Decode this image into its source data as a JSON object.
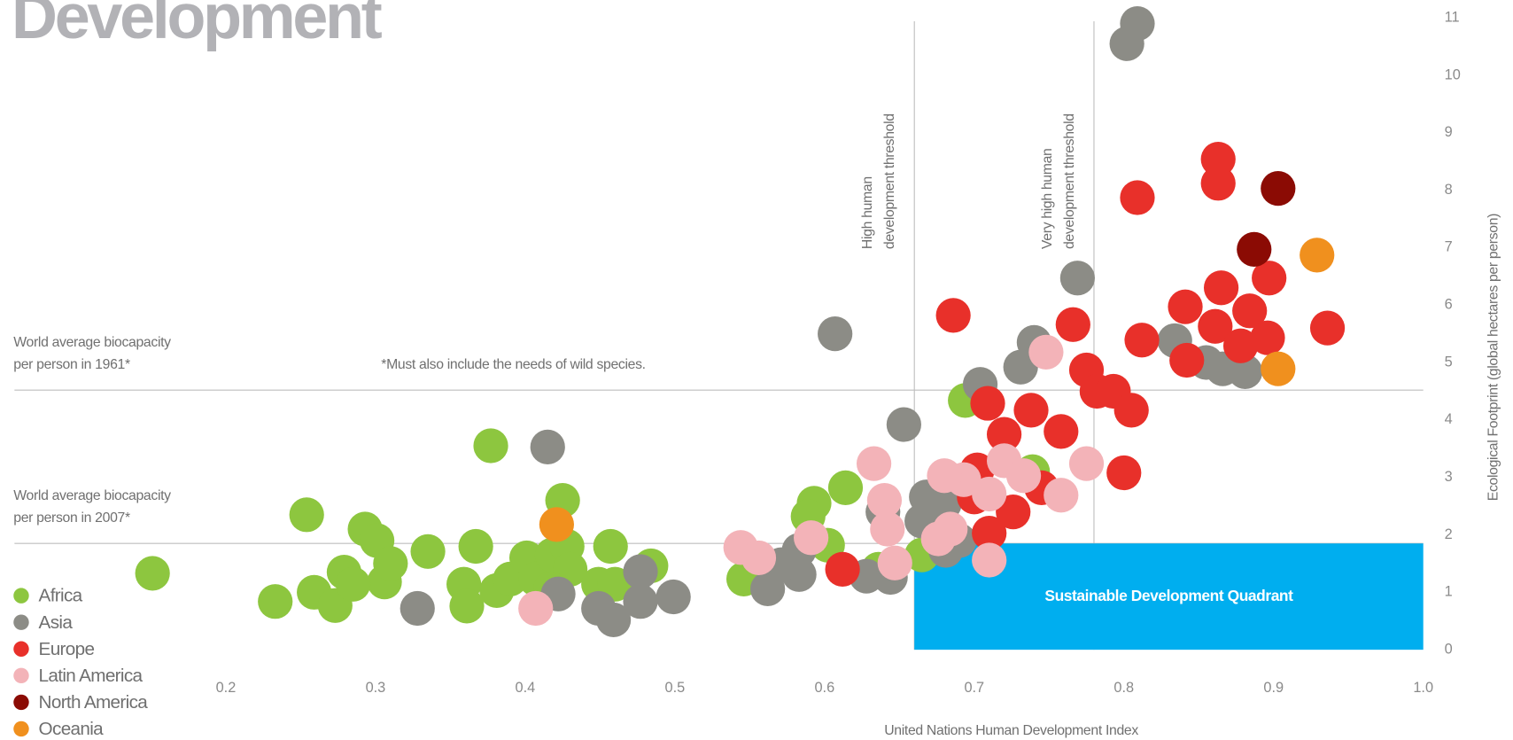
{
  "chart_data": {
    "type": "scatter",
    "title": "Development",
    "xlabel": "United Nations Human Development Index",
    "ylabel": "Ecological Footprint (global hectares per person)",
    "xlim": [
      0.06,
      1.0
    ],
    "ylim": [
      0,
      11.3
    ],
    "xticks": [
      0.2,
      0.3,
      0.4,
      0.5,
      0.6,
      0.7,
      0.8,
      0.9,
      {
        "value": 1.0,
        "label": "1.0"
      }
    ],
    "yticks": [
      0,
      1,
      2,
      3,
      4,
      5,
      6,
      7,
      8,
      9,
      10,
      11
    ],
    "hlines": [
      {
        "value": 4.52,
        "label": [
          "World average biocapacity",
          "per person in 1961*"
        ]
      },
      {
        "value": 1.85,
        "label": [
          "World average biocapacity",
          "per person in 2007*"
        ]
      }
    ],
    "vlines": [
      {
        "value": 0.66,
        "label": [
          "High human",
          "development threshold"
        ]
      },
      {
        "value": 0.78,
        "label": [
          "Very high human",
          "development threshold"
        ]
      }
    ],
    "quadrant_label": "Sustainable Development Quadrant",
    "quadrant_color": "#00aeef",
    "note": "*Must also include the needs of wild species.",
    "legend": "lower left",
    "series": [
      {
        "name": "Africa",
        "color": "#8dc63f",
        "x": [
          0.151,
          0.233,
          0.254,
          0.259,
          0.273,
          0.279,
          0.293,
          0.301,
          0.306,
          0.31,
          0.285,
          0.335,
          0.367,
          0.359,
          0.361,
          0.377,
          0.381,
          0.39,
          0.401,
          0.407,
          0.418,
          0.425,
          0.428,
          0.43,
          0.417,
          0.457,
          0.449,
          0.46,
          0.484,
          0.546,
          0.593,
          0.589,
          0.614,
          0.602,
          0.665,
          0.694,
          0.739,
          0.636
        ],
        "values": [
          1.33,
          0.84,
          2.35,
          1.0,
          0.77,
          1.35,
          2.1,
          1.9,
          1.18,
          1.5,
          1.14,
          1.71,
          1.8,
          1.14,
          0.76,
          3.55,
          1.03,
          1.23,
          1.6,
          1.23,
          1.65,
          2.6,
          1.8,
          1.4,
          1.06,
          1.8,
          1.14,
          1.14,
          1.46,
          1.23,
          2.55,
          2.32,
          2.82,
          1.82,
          1.65,
          4.34,
          3.1,
          1.4
        ]
      },
      {
        "name": "Asia",
        "color": "#8c8c86",
        "x": [
          0.809,
          0.802,
          0.769,
          0.607,
          0.834,
          0.74,
          0.731,
          0.704,
          0.855,
          0.866,
          0.881,
          0.653,
          0.415,
          0.668,
          0.68,
          0.639,
          0.665,
          0.69,
          0.681,
          0.583,
          0.583,
          0.562,
          0.571,
          0.628,
          0.644,
          0.477,
          0.477,
          0.499,
          0.449,
          0.459,
          0.422,
          0.328
        ],
        "values": [
          10.9,
          10.55,
          6.47,
          5.5,
          5.38,
          5.35,
          4.92,
          4.62,
          5.0,
          4.89,
          4.84,
          3.92,
          3.53,
          2.66,
          2.54,
          2.4,
          2.24,
          1.9,
          1.73,
          1.73,
          1.31,
          1.06,
          1.48,
          1.28,
          1.26,
          1.36,
          0.84,
          0.92,
          0.72,
          0.52,
          0.97,
          0.72
        ]
      },
      {
        "name": "Europe",
        "color": "#e8302a",
        "x": [
          0.863,
          0.863,
          0.809,
          0.865,
          0.897,
          0.884,
          0.841,
          0.861,
          0.686,
          0.766,
          0.812,
          0.842,
          0.896,
          0.878,
          0.936,
          0.775,
          0.782,
          0.793,
          0.805,
          0.709,
          0.738,
          0.72,
          0.758,
          0.8,
          0.702,
          0.745,
          0.726,
          0.7,
          0.71,
          0.612
        ],
        "values": [
          8.54,
          8.12,
          7.87,
          6.3,
          6.47,
          5.9,
          5.97,
          5.63,
          5.82,
          5.66,
          5.39,
          5.04,
          5.43,
          5.29,
          5.6,
          4.87,
          4.5,
          4.5,
          4.17,
          4.29,
          4.17,
          3.75,
          3.8,
          3.08,
          3.13,
          2.82,
          2.4,
          2.66,
          2.03,
          1.4
        ]
      },
      {
        "name": "Latin America",
        "color": "#f3b3b8",
        "x": [
          0.748,
          0.775,
          0.72,
          0.733,
          0.71,
          0.693,
          0.68,
          0.758,
          0.633,
          0.64,
          0.642,
          0.684,
          0.676,
          0.647,
          0.591,
          0.544,
          0.556,
          0.71,
          0.407
        ],
        "values": [
          5.18,
          3.24,
          3.29,
          3.03,
          2.71,
          2.96,
          3.03,
          2.69,
          3.24,
          2.6,
          2.1,
          2.1,
          1.93,
          1.51,
          1.95,
          1.78,
          1.6,
          1.56,
          0.72
        ]
      },
      {
        "name": "North America",
        "color": "#8b0b04",
        "x": [
          0.903,
          0.887
        ],
        "values": [
          8.03,
          6.97
        ]
      },
      {
        "name": "Oceania",
        "color": "#f0901e",
        "x": [
          0.929,
          0.903,
          0.421
        ],
        "values": [
          6.87,
          4.89,
          2.18
        ]
      }
    ]
  }
}
